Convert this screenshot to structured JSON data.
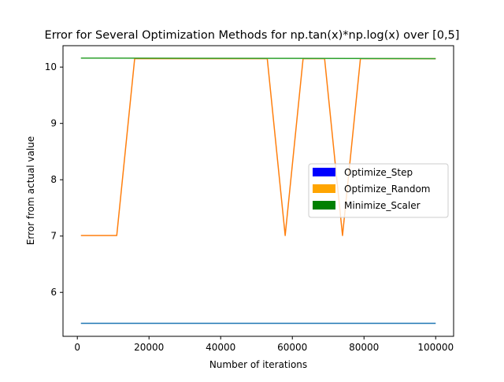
{
  "chart_data": {
    "type": "line",
    "title": "Error for Several Optimization Methods for np.tan(x)*np.log(x) over [0,5]",
    "xlabel": "Number of iterations",
    "ylabel": "Error from actual value",
    "xlim": [
      -4000,
      105000
    ],
    "ylim": [
      5.22,
      10.38
    ],
    "xticks": [
      0,
      20000,
      40000,
      60000,
      80000,
      100000
    ],
    "xtick_labels": [
      "0",
      "20000",
      "40000",
      "60000",
      "80000",
      "100000"
    ],
    "yticks": [
      6,
      7,
      8,
      9,
      10
    ],
    "ytick_labels": [
      "6",
      "7",
      "8",
      "9",
      "10"
    ],
    "grid": false,
    "legend_position": "center-right",
    "legend": [
      {
        "label": "Optimize_Step",
        "color": "#0000ff"
      },
      {
        "label": "Optimize_Random",
        "color": "#ffa500"
      },
      {
        "label": "Minimize_Scaler",
        "color": "#008000"
      }
    ],
    "series": [
      {
        "color": "#1f77b4",
        "points": [
          [
            1000,
            5.45
          ],
          [
            100000,
            5.45
          ]
        ]
      },
      {
        "color": "#ff7f0e",
        "points": [
          [
            1000,
            7.01
          ],
          [
            11000,
            7.01
          ],
          [
            16000,
            10.15
          ],
          [
            53000,
            10.15
          ],
          [
            58000,
            7.01
          ],
          [
            63000,
            10.15
          ],
          [
            69000,
            10.15
          ],
          [
            74000,
            7.01
          ],
          [
            79000,
            10.15
          ],
          [
            100000,
            10.15
          ]
        ]
      },
      {
        "color": "#2ca02c",
        "points": [
          [
            1000,
            10.16
          ],
          [
            100000,
            10.15
          ]
        ]
      }
    ]
  }
}
